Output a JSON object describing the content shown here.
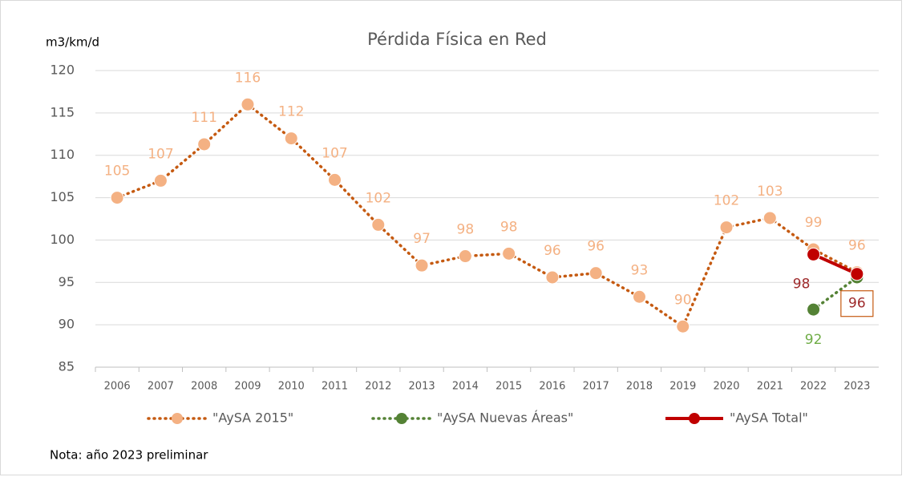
{
  "chart_data": {
    "type": "line",
    "title": "Pérdida Física en Red",
    "y_label": "m3/km/d",
    "note": "Nota: año 2023 preliminar",
    "categories": [
      "2006",
      "2007",
      "2008",
      "2009",
      "2010",
      "2011",
      "2012",
      "2013",
      "2014",
      "2015",
      "2016",
      "2017",
      "2018",
      "2019",
      "2020",
      "2021",
      "2022",
      "2023"
    ],
    "series": [
      {
        "name": "\"AySA 2015\"",
        "color": "#f4b183",
        "line_color": "#c55a11",
        "values": [
          105,
          107,
          111.3,
          116,
          112,
          107.1,
          101.8,
          97,
          98.1,
          98.4,
          95.6,
          96.1,
          93.3,
          89.8,
          101.5,
          102.6,
          98.9,
          96.2
        ],
        "value_labels": [
          "105",
          "107",
          "111",
          "116",
          "112",
          "107",
          "102",
          "97",
          "98",
          "98",
          "96",
          "96",
          "93",
          "90",
          "102",
          "103",
          "99",
          "96"
        ]
      },
      {
        "name": "\"AySA Nuevas Áreas\"",
        "color": "#548235",
        "line_color": "#548235",
        "values": [
          null,
          null,
          null,
          null,
          null,
          null,
          null,
          null,
          null,
          null,
          null,
          null,
          null,
          null,
          null,
          null,
          91.8,
          95.6
        ],
        "value_labels": [
          null,
          null,
          null,
          null,
          null,
          null,
          null,
          null,
          null,
          null,
          null,
          null,
          null,
          null,
          null,
          null,
          "92",
          "96"
        ]
      },
      {
        "name": "\"AySA Total\"",
        "color": "#c00000",
        "line_color": "#c00000",
        "values": [
          null,
          null,
          null,
          null,
          null,
          null,
          null,
          null,
          null,
          null,
          null,
          null,
          null,
          null,
          null,
          null,
          98.3,
          96
        ],
        "value_labels": [
          null,
          null,
          null,
          null,
          null,
          null,
          null,
          null,
          null,
          null,
          null,
          null,
          null,
          null,
          null,
          null,
          "98",
          "96"
        ]
      }
    ],
    "ylim": [
      85,
      120
    ],
    "yticks": [
      85,
      90,
      95,
      100,
      105,
      110,
      115,
      120
    ],
    "grid": true
  }
}
